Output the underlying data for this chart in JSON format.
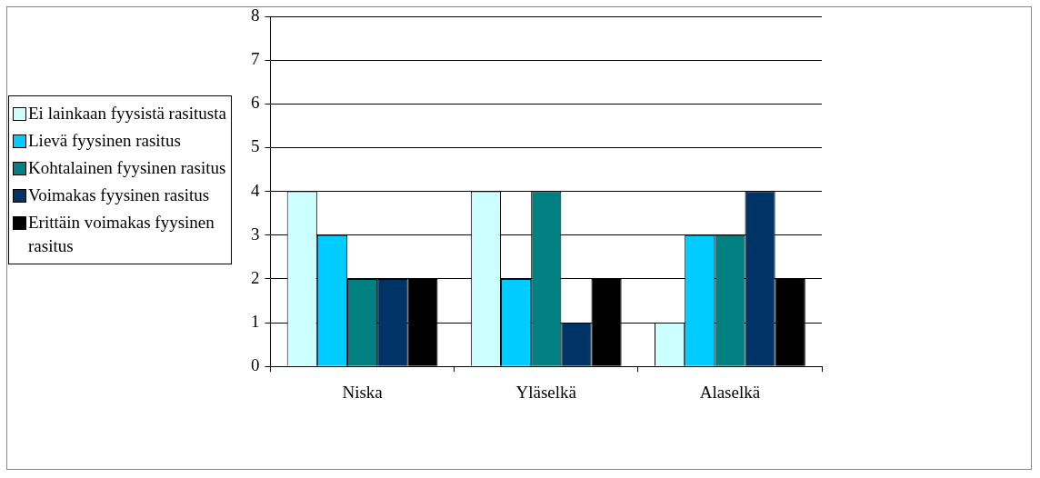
{
  "chart_data": {
    "type": "bar",
    "categories": [
      "Niska",
      "Yläselkä",
      "Alaselkä"
    ],
    "series": [
      {
        "name": "Ei lainkaan fyysistä rasitusta",
        "color": "#ccffff",
        "values": [
          4,
          4,
          1
        ]
      },
      {
        "name": "Lievä fyysinen rasitus",
        "color": "#00ccff",
        "values": [
          3,
          2,
          3
        ]
      },
      {
        "name": "Kohtalainen fyysinen rasitus",
        "color": "#008080",
        "values": [
          2,
          4,
          3
        ]
      },
      {
        "name": "Voimakas fyysinen rasitus",
        "color": "#003366",
        "values": [
          2,
          1,
          4
        ]
      },
      {
        "name": "Erittäin voimakas fyysinen rasitus",
        "color": "#000000",
        "values": [
          2,
          2,
          2
        ]
      }
    ],
    "ylim": [
      0,
      8
    ],
    "yticks": [
      0,
      1,
      2,
      3,
      4,
      5,
      6,
      7,
      8
    ],
    "grid": "y",
    "legend": "left"
  }
}
